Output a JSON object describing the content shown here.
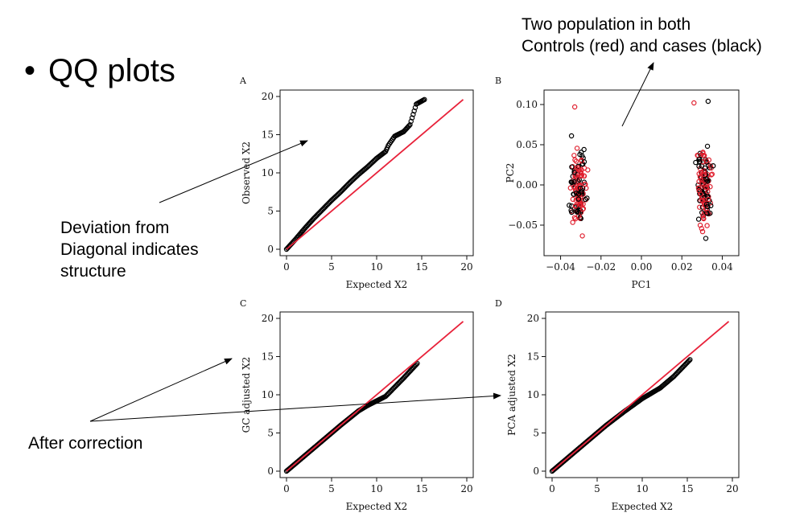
{
  "slide": {
    "bullet": "•",
    "title": "QQ plots"
  },
  "notes": {
    "top_right": "Two population in both\nControls (red) and cases (black)",
    "deviation": "Deviation from\nDiagonal indicates\nstructure",
    "after": "After correction"
  },
  "colors": {
    "diagonal": "#e8223a",
    "cases": "#000000",
    "controls": "#e0202f"
  },
  "chart_data": [
    {
      "panel": "A",
      "type": "scatter",
      "xlabel": "Expected X2",
      "ylabel": "Observed X2",
      "xlim": [
        0,
        20
      ],
      "ylim": [
        0,
        20
      ],
      "xticks": [
        "0",
        "5",
        "10",
        "15",
        "20"
      ],
      "yticks": [
        "0",
        "5",
        "10",
        "15",
        "20"
      ],
      "reference_line": {
        "from": [
          0,
          0
        ],
        "to": [
          19.6,
          19.6
        ],
        "color": "#e8223a"
      },
      "series": [
        {
          "values": [
            [
              0,
              0
            ],
            [
              1,
              1.3
            ],
            [
              2,
              2.7
            ],
            [
              3,
              4.0
            ],
            [
              4,
              5.2
            ],
            [
              5,
              6.4
            ],
            [
              6,
              7.5
            ],
            [
              7,
              8.7
            ],
            [
              8,
              9.8
            ],
            [
              9,
              10.8
            ],
            [
              10,
              11.9
            ],
            [
              11,
              12.8
            ],
            [
              11.3,
              13.6
            ],
            [
              12,
              14.8
            ],
            [
              12.5,
              15.1
            ],
            [
              13,
              15.4
            ],
            [
              13.7,
              16.3
            ],
            [
              14.4,
              19.0
            ],
            [
              15.3,
              19.6
            ]
          ]
        }
      ]
    },
    {
      "panel": "B",
      "type": "scatter",
      "xlabel": "PC1",
      "ylabel": "PC2",
      "xlim": [
        -0.045,
        0.045
      ],
      "ylim": [
        -0.08,
        0.11
      ],
      "xticks": [
        "−0.04",
        "−0.02",
        "0.00",
        "0.02",
        "0.04"
      ],
      "yticks": [
        "−0.05",
        "0.00",
        "0.05",
        "0.10"
      ],
      "clusters": [
        {
          "center": [
            -0.031,
            0.0
          ],
          "x_spread": 0.006,
          "y_spread": 0.075
        },
        {
          "center": [
            0.031,
            0.0
          ],
          "x_spread": 0.006,
          "y_spread": 0.08
        }
      ],
      "outliers": [
        [
          -0.033,
          0.097
        ],
        [
          0.026,
          0.102
        ],
        [
          0.033,
          0.104
        ]
      ]
    },
    {
      "panel": "C",
      "type": "scatter",
      "xlabel": "Expected X2",
      "ylabel": "GC adjusted X2",
      "xlim": [
        0,
        20
      ],
      "ylim": [
        0,
        20
      ],
      "xticks": [
        "0",
        "5",
        "10",
        "15",
        "20"
      ],
      "yticks": [
        "0",
        "5",
        "10",
        "15",
        "20"
      ],
      "reference_line": {
        "from": [
          0,
          0
        ],
        "to": [
          19.6,
          19.6
        ],
        "color": "#e8223a"
      },
      "series": [
        {
          "values": [
            [
              0,
              0
            ],
            [
              2,
              2
            ],
            [
              4,
              4
            ],
            [
              6,
              6
            ],
            [
              8,
              7.9
            ],
            [
              9,
              8.6
            ],
            [
              10,
              9.2
            ],
            [
              11,
              9.8
            ],
            [
              12,
              11.0
            ],
            [
              13,
              12.2
            ],
            [
              14.5,
              14.1
            ]
          ]
        }
      ]
    },
    {
      "panel": "D",
      "type": "scatter",
      "xlabel": "Expected X2",
      "ylabel": "PCA adjusted X2",
      "xlim": [
        0,
        20
      ],
      "ylim": [
        0,
        20
      ],
      "xticks": [
        "0",
        "5",
        "10",
        "15",
        "20"
      ],
      "yticks": [
        "0",
        "5",
        "10",
        "15",
        "20"
      ],
      "reference_line": {
        "from": [
          0,
          0
        ],
        "to": [
          19.6,
          19.6
        ],
        "color": "#e8223a"
      },
      "series": [
        {
          "values": [
            [
              0,
              0
            ],
            [
              2,
              2
            ],
            [
              4,
              4
            ],
            [
              6,
              6
            ],
            [
              8,
              7.8
            ],
            [
              10,
              9.5
            ],
            [
              11,
              10.2
            ],
            [
              12,
              10.9
            ],
            [
              13.5,
              12.4
            ],
            [
              15.3,
              14.6
            ]
          ]
        }
      ]
    }
  ]
}
